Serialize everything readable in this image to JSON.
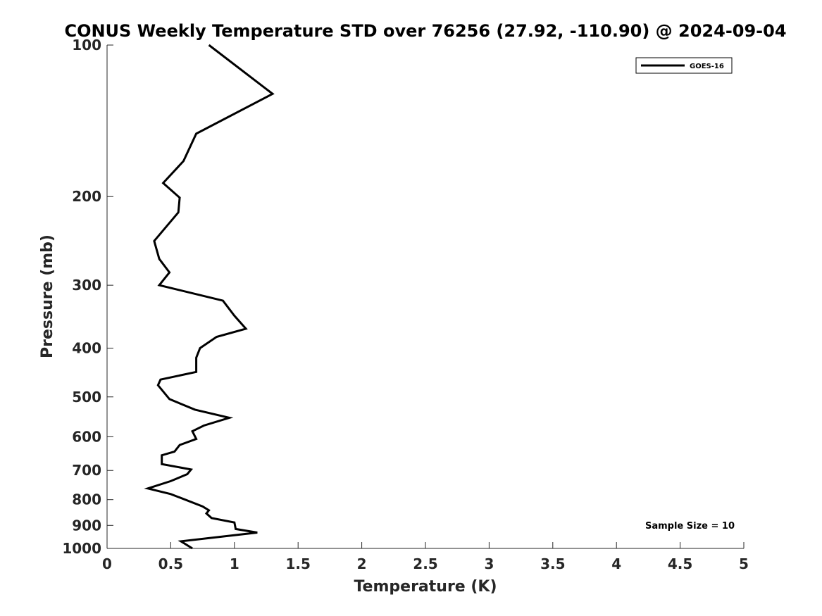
{
  "chart_data": {
    "type": "line",
    "title": "CONUS Weekly Temperature STD over 76256 (27.92, -110.90) @ 2024-09-04",
    "xlabel": "Temperature (K)",
    "ylabel": "Pressure (mb)",
    "xlim": [
      0,
      5
    ],
    "ylim": [
      100,
      1000
    ],
    "yscale": "log",
    "y_reversed": true,
    "grid": false,
    "legend_position": "top-right",
    "xticks": [
      0,
      0.5,
      1,
      1.5,
      2,
      2.5,
      3,
      3.5,
      4,
      4.5,
      5
    ],
    "xtick_labels": [
      "0",
      "0.5",
      "1",
      "1.5",
      "2",
      "2.5",
      "3",
      "3.5",
      "4",
      "4.5",
      "5"
    ],
    "yticks": [
      100,
      200,
      300,
      400,
      500,
      600,
      700,
      800,
      900,
      1000
    ],
    "ytick_labels": [
      "100",
      "200",
      "300",
      "400",
      "500",
      "600",
      "700",
      "800",
      "900",
      "1000"
    ],
    "series": [
      {
        "name": "GOES-16",
        "color": "#000000",
        "points": [
          [
            0.8,
            100
          ],
          [
            1.3,
            125
          ],
          [
            0.7,
            150
          ],
          [
            0.6,
            170
          ],
          [
            0.44,
            188
          ],
          [
            0.57,
            201
          ],
          [
            0.56,
            215
          ],
          [
            0.37,
            245
          ],
          [
            0.41,
            266
          ],
          [
            0.49,
            283
          ],
          [
            0.41,
            300
          ],
          [
            0.91,
            322
          ],
          [
            1.0,
            345
          ],
          [
            1.09,
            366
          ],
          [
            0.86,
            380
          ],
          [
            0.73,
            400
          ],
          [
            0.7,
            418
          ],
          [
            0.7,
            446
          ],
          [
            0.42,
            462
          ],
          [
            0.4,
            474
          ],
          [
            0.49,
            505
          ],
          [
            0.69,
            530
          ],
          [
            0.96,
            550
          ],
          [
            0.76,
            570
          ],
          [
            0.67,
            585
          ],
          [
            0.7,
            606
          ],
          [
            0.57,
            623
          ],
          [
            0.53,
            642
          ],
          [
            0.43,
            653
          ],
          [
            0.43,
            680
          ],
          [
            0.66,
            697
          ],
          [
            0.63,
            712
          ],
          [
            0.5,
            735
          ],
          [
            0.32,
            760
          ],
          [
            0.5,
            780
          ],
          [
            0.75,
            825
          ],
          [
            0.8,
            840
          ],
          [
            0.78,
            852
          ],
          [
            0.82,
            870
          ],
          [
            1.0,
            888
          ],
          [
            1.01,
            915
          ],
          [
            1.18,
            930
          ],
          [
            0.58,
            968
          ],
          [
            0.67,
            1000
          ]
        ]
      }
    ],
    "annotation": "Sample Size = 10"
  }
}
